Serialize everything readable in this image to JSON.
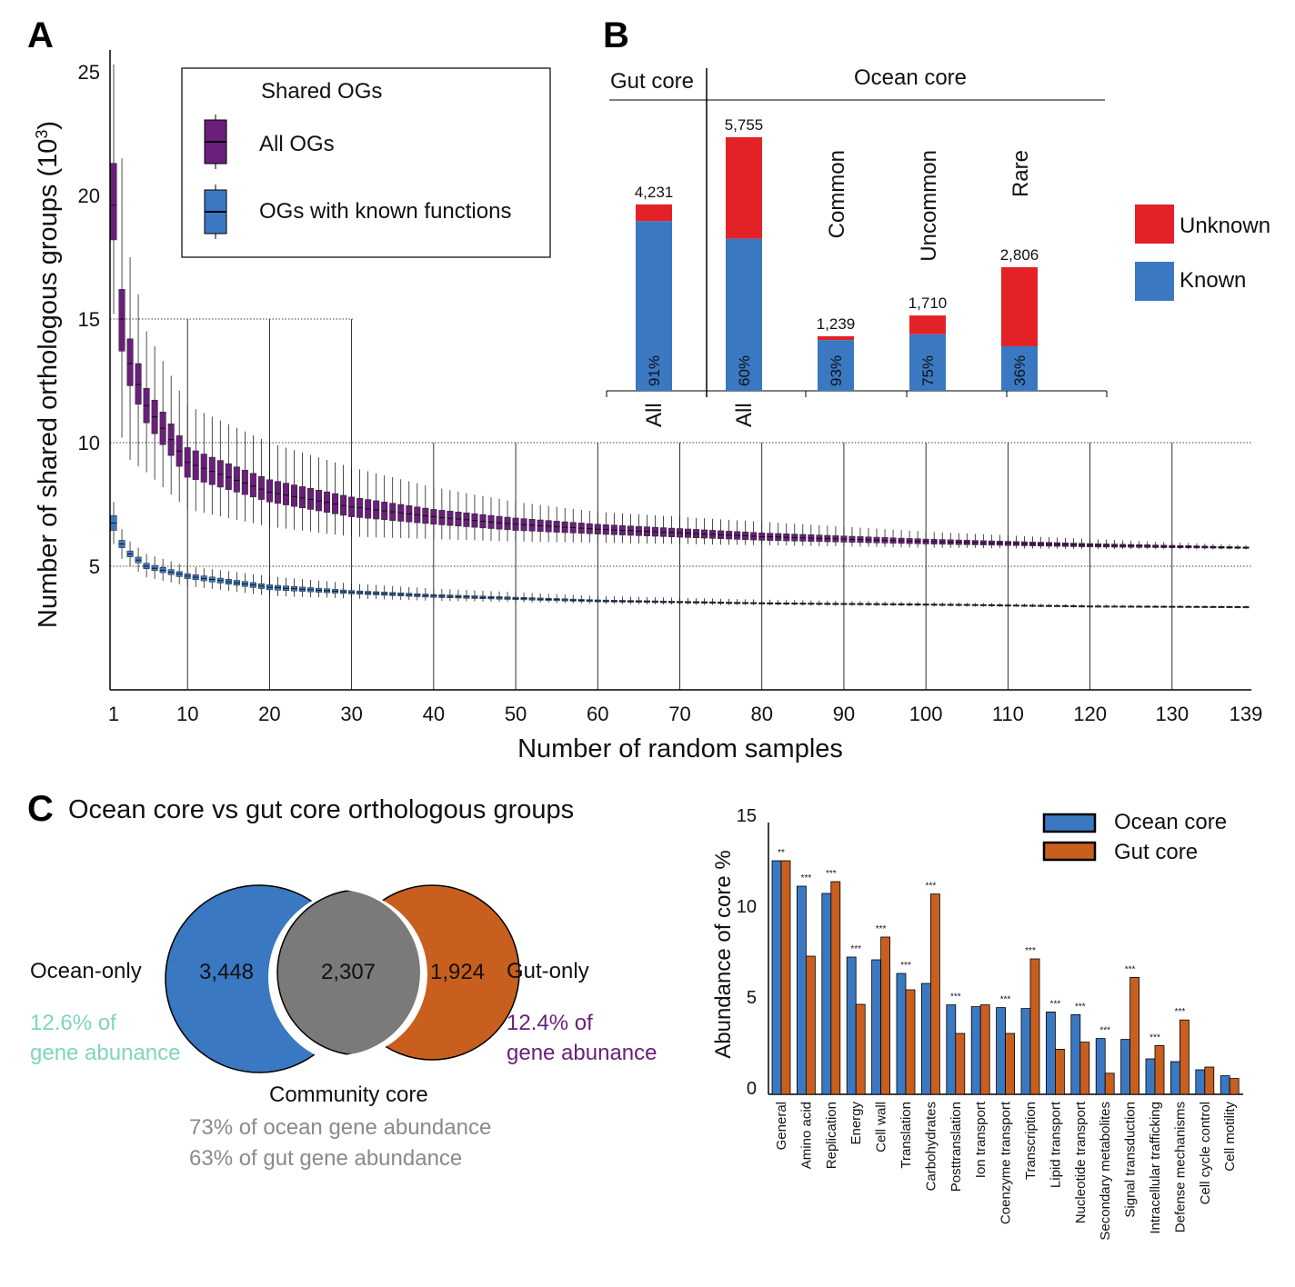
{
  "panels": {
    "a": "A",
    "b": "B",
    "c": "C"
  },
  "colors": {
    "purple": "#6a1f7a",
    "blue": "#3a78c2",
    "red": "#e32228",
    "orange": "#c85f1e",
    "teal": "#7fd4c0",
    "gray_text": "#8a8a8a",
    "lens_gray": "#7a7a7a"
  },
  "chart_data": [
    {
      "type": "boxplot",
      "xlabel": "Number of random samples",
      "ylabel": "Number of shared orthologous groups (10",
      "ylabel_sup": "3",
      "ylabel_close": ")",
      "xlim": [
        1,
        139
      ],
      "ylim": [
        0,
        26
      ],
      "xticks": [
        1,
        10,
        20,
        30,
        40,
        50,
        60,
        70,
        80,
        90,
        100,
        110,
        120,
        130,
        139
      ],
      "yticks": [
        5,
        10,
        15,
        20,
        25
      ],
      "grid": "dotted horizontal at 5, 10, 15; vertical lines at every 10 samples",
      "legend": {
        "title": "Shared OGs",
        "placement": "top-left"
      },
      "key_x": [
        1,
        2,
        3,
        5,
        10,
        20,
        30,
        40,
        50,
        60,
        80,
        100,
        120,
        139
      ],
      "series": [
        {
          "name": "All OGs",
          "color": "#6a1f7a",
          "median": [
            19.6,
            15.0,
            13.2,
            11.5,
            9.2,
            8.0,
            7.4,
            7.0,
            6.7,
            6.5,
            6.2,
            6.0,
            5.85,
            5.75
          ],
          "q1": [
            18.2,
            13.7,
            12.3,
            10.8,
            8.6,
            7.6,
            7.0,
            6.7,
            6.45,
            6.3,
            6.05,
            5.9,
            5.78,
            5.72
          ],
          "q3": [
            21.3,
            16.2,
            14.2,
            12.2,
            9.8,
            8.5,
            7.8,
            7.3,
            6.95,
            6.7,
            6.35,
            6.1,
            5.92,
            5.78
          ],
          "whisker_low": [
            15.2,
            10.2,
            9.3,
            8.8,
            7.3,
            6.6,
            6.2,
            6.1,
            6.0,
            5.95,
            5.85,
            5.75,
            5.7,
            5.68
          ],
          "whisker_high": [
            25.3,
            21.5,
            17.5,
            14.5,
            11.5,
            10.0,
            9.0,
            8.2,
            7.6,
            7.2,
            6.8,
            6.4,
            6.1,
            5.85
          ]
        },
        {
          "name": "OGs with known functions",
          "color": "#3a78c2",
          "median": [
            6.75,
            5.9,
            5.5,
            5.0,
            4.6,
            4.15,
            3.95,
            3.8,
            3.7,
            3.6,
            3.5,
            3.45,
            3.38,
            3.35
          ],
          "q1": [
            6.45,
            5.75,
            5.38,
            4.9,
            4.5,
            4.05,
            3.88,
            3.74,
            3.65,
            3.56,
            3.47,
            3.42,
            3.36,
            3.33
          ],
          "q3": [
            7.05,
            6.05,
            5.62,
            5.12,
            4.7,
            4.25,
            4.02,
            3.86,
            3.75,
            3.64,
            3.53,
            3.48,
            3.4,
            3.37
          ],
          "whisker_low": [
            5.9,
            5.3,
            5.0,
            4.55,
            4.2,
            3.8,
            3.7,
            3.6,
            3.55,
            3.48,
            3.42,
            3.38,
            3.33,
            3.31
          ],
          "whisker_high": [
            7.6,
            6.5,
            6.0,
            5.5,
            5.0,
            4.6,
            4.3,
            4.1,
            3.95,
            3.8,
            3.65,
            3.55,
            3.45,
            3.4
          ]
        }
      ]
    },
    {
      "type": "stacked-bar",
      "groups": {
        "gut": "Gut core",
        "ocean": "Ocean core"
      },
      "categories": [
        {
          "label": "All",
          "group": "gut",
          "total": 4231,
          "total_label": "4,231",
          "known_pct": 91,
          "known_label": "91%",
          "rotated_label": ""
        },
        {
          "label": "All",
          "group": "ocean",
          "total": 5755,
          "total_label": "5,755",
          "known_pct": 60,
          "known_label": "60%",
          "rotated_label": ""
        },
        {
          "label": "",
          "group": "ocean",
          "total": 1239,
          "total_label": "1,239",
          "known_pct": 93,
          "known_label": "93%",
          "rotated_label": "Common"
        },
        {
          "label": "",
          "group": "ocean",
          "total": 1710,
          "total_label": "1,710",
          "known_pct": 75,
          "known_label": "75%",
          "rotated_label": "Uncommon"
        },
        {
          "label": "",
          "group": "ocean",
          "total": 2806,
          "total_label": "2,806",
          "known_pct": 36,
          "known_label": "36%",
          "rotated_label": "Rare"
        }
      ],
      "series": [
        {
          "name": "Unknown",
          "color": "#e32228"
        },
        {
          "name": "Known",
          "color": "#3a78c2"
        }
      ],
      "legend": "right"
    },
    {
      "type": "bar",
      "ylabel": "Abundance of core %",
      "ylim": [
        0,
        15
      ],
      "yticks": [
        0,
        5,
        10,
        15
      ],
      "legend": "top-right",
      "categories": [
        "General",
        "Amino acid",
        "Replication",
        "Energy",
        "Cell wall",
        "Translation",
        "Carbohydrates",
        "Posttranslation",
        "Ion transport",
        "Coenzyme transport",
        "Transcription",
        "Lipid transport",
        "Nucleotide transport",
        "Secondary metabolites",
        "Signal transduction",
        "Intracellular trafficking",
        "Defense mechanisms",
        "Cell cycle control",
        "Cell motility"
      ],
      "significance": [
        "**",
        "***",
        "***",
        "***",
        "***",
        "***",
        "***",
        "***",
        "",
        "***",
        "***",
        "***",
        "***",
        "***",
        "***",
        "***",
        "***",
        "",
        ""
      ],
      "series": [
        {
          "name": "Ocean core",
          "color": "#3a78c2",
          "values": [
            12.5,
            11.1,
            10.7,
            7.2,
            7.05,
            6.3,
            5.75,
            4.57,
            4.47,
            4.42,
            4.37,
            4.18,
            4.03,
            2.72,
            2.67,
            1.6,
            1.45,
            1.0,
            0.67
          ]
        },
        {
          "name": "Gut core",
          "color": "#c85f1e",
          "values": [
            12.5,
            7.25,
            11.35,
            4.6,
            8.3,
            5.4,
            10.67,
            3.0,
            4.57,
            3.0,
            7.1,
            2.13,
            2.52,
            0.81,
            6.08,
            2.33,
            3.74,
            1.15,
            0.52
          ]
        }
      ]
    }
  ],
  "venn": {
    "title": "Ocean core vs gut core orthologous groups",
    "ocean_only": {
      "label": "Ocean-only",
      "count": "3,448",
      "pct_line1": "12.6% of",
      "pct_line2": "gene abunance"
    },
    "gut_only": {
      "label": "Gut-only",
      "count": "1,924",
      "pct_line1": "12.4% of",
      "pct_line2": "gene abunance"
    },
    "shared": {
      "label": "Community core",
      "count": "2,307",
      "line1": "73% of ocean gene abundance",
      "line2": "63% of gut gene abundance"
    }
  }
}
